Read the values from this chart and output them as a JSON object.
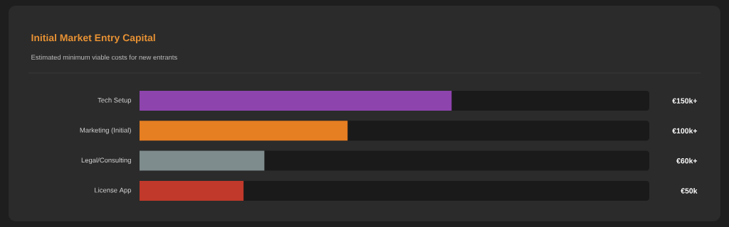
{
  "chart_data": {
    "type": "bar",
    "orientation": "horizontal",
    "title": "Initial Market Entry Capital",
    "subtitle": "Estimated minimum viable costs for new entrants",
    "categories": [
      "Tech Setup",
      "Marketing (Initial)",
      "Legal/Consulting",
      "License App"
    ],
    "values": [
      150,
      100,
      60,
      50
    ],
    "value_labels": [
      "€150k+",
      "€100k+",
      "€60k+",
      "€50k"
    ],
    "colors": [
      "#8e44ad",
      "#e67e22",
      "#7f8c8d",
      "#c0392b"
    ],
    "xlim": [
      0,
      245
    ],
    "tick_labels": "y"
  }
}
